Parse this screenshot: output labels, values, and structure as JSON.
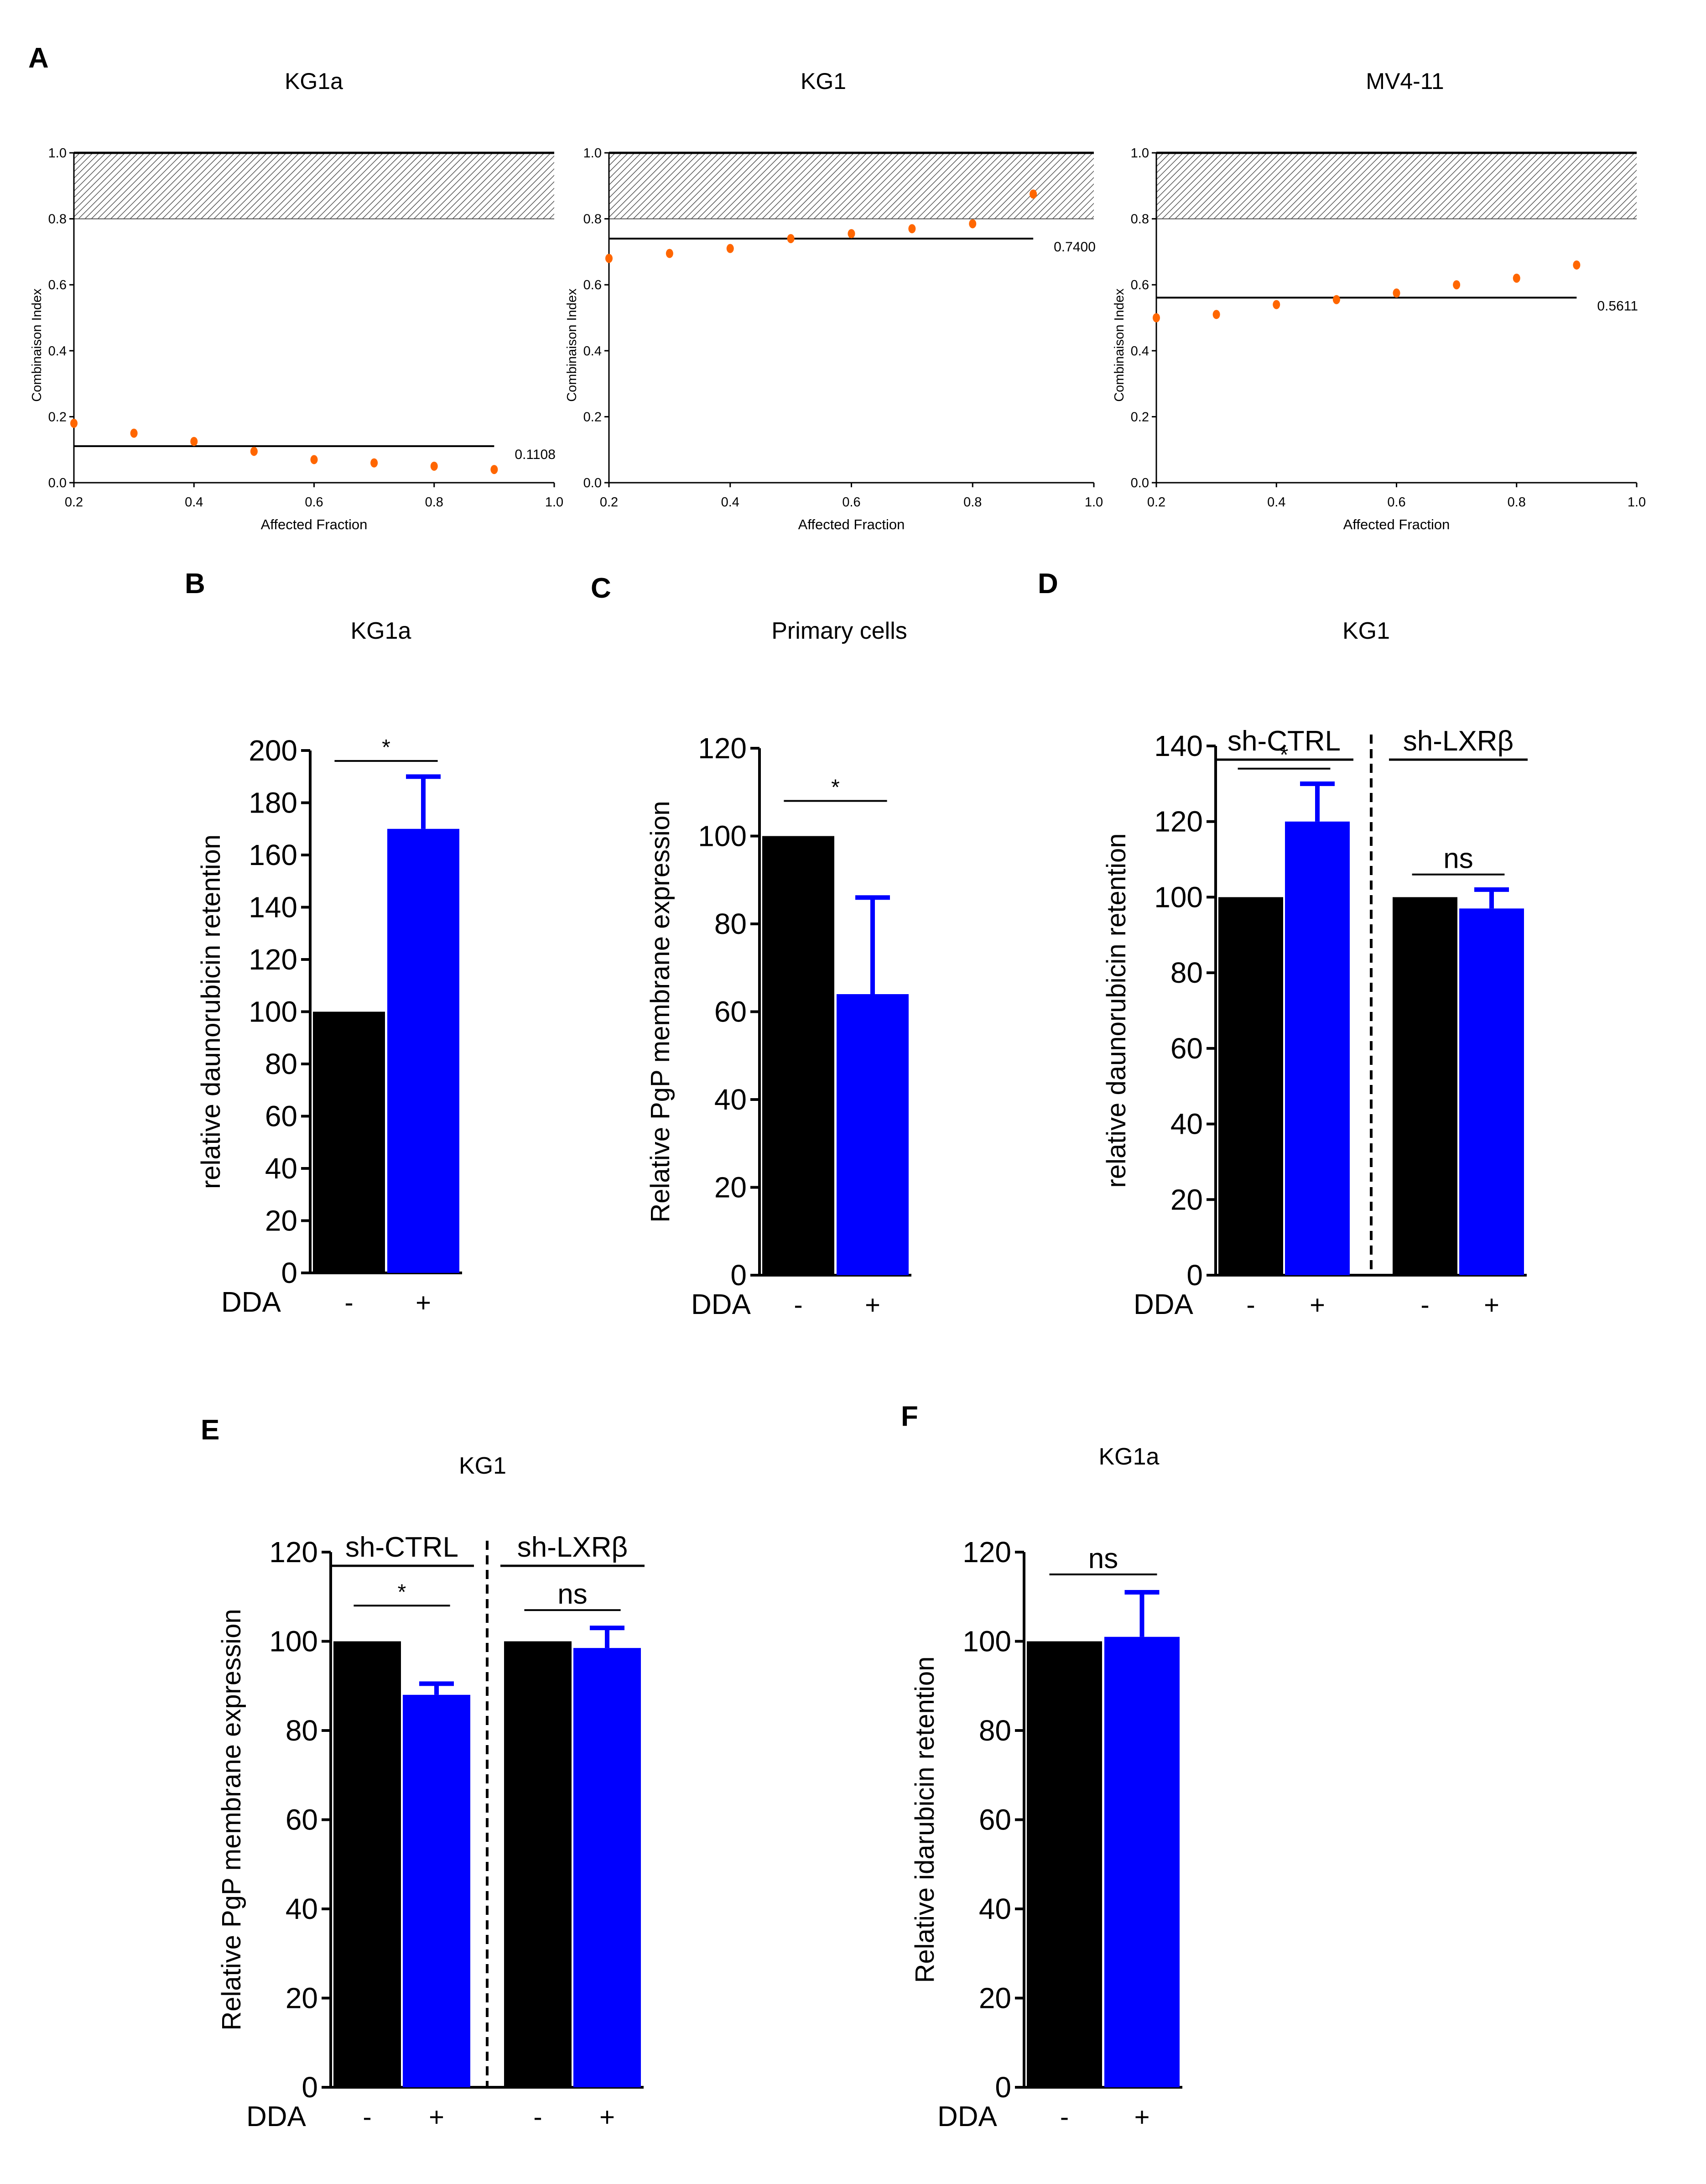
{
  "figure": {
    "panel_letters": [
      "A",
      "B",
      "C",
      "D",
      "E",
      "F"
    ]
  },
  "style": {
    "point_color": "#ff6600",
    "bar_control": "#000000",
    "bar_treated": "#0000ff",
    "error_color": "#0000ff",
    "hatch_color": "#555555",
    "axis_color": "#000000"
  },
  "chart_data": [
    {
      "id": "A1",
      "panel": "A",
      "type": "scatter",
      "title": "KG1a",
      "xlabel": "Affected Fraction",
      "ylabel": "Combinaison Index",
      "xlim": [
        0.2,
        1.0
      ],
      "ylim": [
        0.0,
        1.0
      ],
      "xticks": [
        "0.2",
        "0.4",
        "0.6",
        "0.8",
        "1.0"
      ],
      "yticks": [
        "0.0",
        "0.2",
        "0.4",
        "0.6",
        "0.8",
        "1.0"
      ],
      "x": [
        0.2,
        0.3,
        0.4,
        0.5,
        0.6,
        0.7,
        0.8,
        0.9
      ],
      "y": [
        0.18,
        0.15,
        0.125,
        0.095,
        0.07,
        0.06,
        0.05,
        0.04
      ],
      "hatch_range": [
        0.8,
        1.0
      ],
      "reference": {
        "value": 0.1108,
        "label": "0.1108",
        "x_end": 0.9
      }
    },
    {
      "id": "A2",
      "panel": "A",
      "type": "scatter",
      "title": "KG1",
      "xlabel": "Affected Fraction",
      "ylabel": "Combinaison Index",
      "xlim": [
        0.2,
        1.0
      ],
      "ylim": [
        0.0,
        1.0
      ],
      "xticks": [
        "0.2",
        "0.4",
        "0.6",
        "0.8",
        "1.0"
      ],
      "yticks": [
        "0.0",
        "0.2",
        "0.4",
        "0.6",
        "0.8",
        "1.0"
      ],
      "x": [
        0.2,
        0.3,
        0.4,
        0.5,
        0.6,
        0.7,
        0.8,
        0.9
      ],
      "y": [
        0.68,
        0.695,
        0.71,
        0.74,
        0.755,
        0.77,
        0.785,
        0.875
      ],
      "hatch_range": [
        0.8,
        1.0
      ],
      "reference": {
        "value": 0.74,
        "label": "0.7400",
        "x_end": 0.9
      }
    },
    {
      "id": "A3",
      "panel": "A",
      "type": "scatter",
      "title": "MV4-11",
      "xlabel": "Affected Fraction",
      "ylabel": "Combinaison Index",
      "xlim": [
        0.2,
        1.0
      ],
      "ylim": [
        0.0,
        1.0
      ],
      "xticks": [
        "0.2",
        "0.4",
        "0.6",
        "0.8",
        "1.0"
      ],
      "yticks": [
        "0.0",
        "0.2",
        "0.4",
        "0.6",
        "0.8",
        "1.0"
      ],
      "x": [
        0.2,
        0.3,
        0.4,
        0.5,
        0.6,
        0.7,
        0.8,
        0.9
      ],
      "y": [
        0.5,
        0.51,
        0.54,
        0.555,
        0.575,
        0.6,
        0.62,
        0.66
      ],
      "hatch_range": [
        0.8,
        1.0
      ],
      "reference": {
        "value": 0.5611,
        "label": "0.5611",
        "x_end": 0.9
      }
    },
    {
      "id": "B",
      "panel": "B",
      "type": "bar",
      "title": "KG1a",
      "ylabel": "relative daunorubicin retention",
      "ylim": [
        0,
        200
      ],
      "yticks": [
        "0",
        "20",
        "40",
        "60",
        "80",
        "100",
        "120",
        "140",
        "160",
        "180",
        "200"
      ],
      "row_label": "DDA",
      "bars": [
        {
          "category": "-",
          "value": 100,
          "error": 0
        },
        {
          "category": "+",
          "value": 170,
          "error": 20
        }
      ],
      "groups": [],
      "significance": [
        {
          "from": 0,
          "to": 1,
          "label": "*",
          "y": 196
        }
      ]
    },
    {
      "id": "C",
      "panel": "C",
      "type": "bar",
      "title": "Primary cells",
      "ylabel": "Relative PgP membrane expression",
      "ylim": [
        0,
        120
      ],
      "yticks": [
        "0",
        "20",
        "40",
        "60",
        "80",
        "100",
        "120"
      ],
      "row_label": "DDA",
      "bars": [
        {
          "category": "-",
          "value": 100,
          "error": 0
        },
        {
          "category": "+",
          "value": 64,
          "error": 22
        }
      ],
      "groups": [],
      "significance": [
        {
          "from": 0,
          "to": 1,
          "label": "*",
          "y": 108
        }
      ]
    },
    {
      "id": "D",
      "panel": "D",
      "type": "bar",
      "title": "KG1",
      "ylabel": "relative daunorubicin retention",
      "ylim": [
        0,
        140
      ],
      "yticks": [
        "0",
        "20",
        "40",
        "60",
        "80",
        "100",
        "120",
        "140"
      ],
      "row_label": "DDA",
      "bars": [
        {
          "category": "-",
          "value": 100,
          "error": 0
        },
        {
          "category": "+",
          "value": 120,
          "error": 10
        },
        {
          "category": "-",
          "value": 100,
          "error": 0
        },
        {
          "category": "+",
          "value": 97,
          "error": 5
        }
      ],
      "groups": [
        {
          "label": "sh-CTRL",
          "from": 0,
          "to": 1
        },
        {
          "label": "sh-LXRβ",
          "from": 2,
          "to": 3
        }
      ],
      "significance": [
        {
          "from": 0,
          "to": 1,
          "label": "*",
          "y": 134
        },
        {
          "from": 2,
          "to": 3,
          "label": "ns",
          "y": 106
        }
      ]
    },
    {
      "id": "E",
      "panel": "E",
      "type": "bar",
      "title": "KG1",
      "ylabel": "Relative PgP membrane expression",
      "ylim": [
        0,
        120
      ],
      "yticks": [
        "0",
        "20",
        "40",
        "60",
        "80",
        "100",
        "120"
      ],
      "row_label": "DDA",
      "bars": [
        {
          "category": "-",
          "value": 100,
          "error": 0
        },
        {
          "category": "+",
          "value": 88,
          "error": 2.5
        },
        {
          "category": "-",
          "value": 100,
          "error": 0
        },
        {
          "category": "+",
          "value": 98.5,
          "error": 4.5
        }
      ],
      "groups": [
        {
          "label": "sh-CTRL",
          "from": 0,
          "to": 1
        },
        {
          "label": "sh-LXRβ",
          "from": 2,
          "to": 3
        }
      ],
      "significance": [
        {
          "from": 0,
          "to": 1,
          "label": "*",
          "y": 108
        },
        {
          "from": 2,
          "to": 3,
          "label": "ns",
          "y": 107
        }
      ]
    },
    {
      "id": "F",
      "panel": "F",
      "type": "bar",
      "title": "KG1a",
      "ylabel": "Relative idarubicin retention",
      "ylim": [
        0,
        120
      ],
      "yticks": [
        "0",
        "20",
        "40",
        "60",
        "80",
        "100",
        "120"
      ],
      "row_label": "DDA",
      "bars": [
        {
          "category": "-",
          "value": 100,
          "error": 0
        },
        {
          "category": "+",
          "value": 101,
          "error": 10
        }
      ],
      "groups": [],
      "significance": [
        {
          "from": 0,
          "to": 1,
          "label": "ns",
          "y": 115
        }
      ]
    }
  ]
}
